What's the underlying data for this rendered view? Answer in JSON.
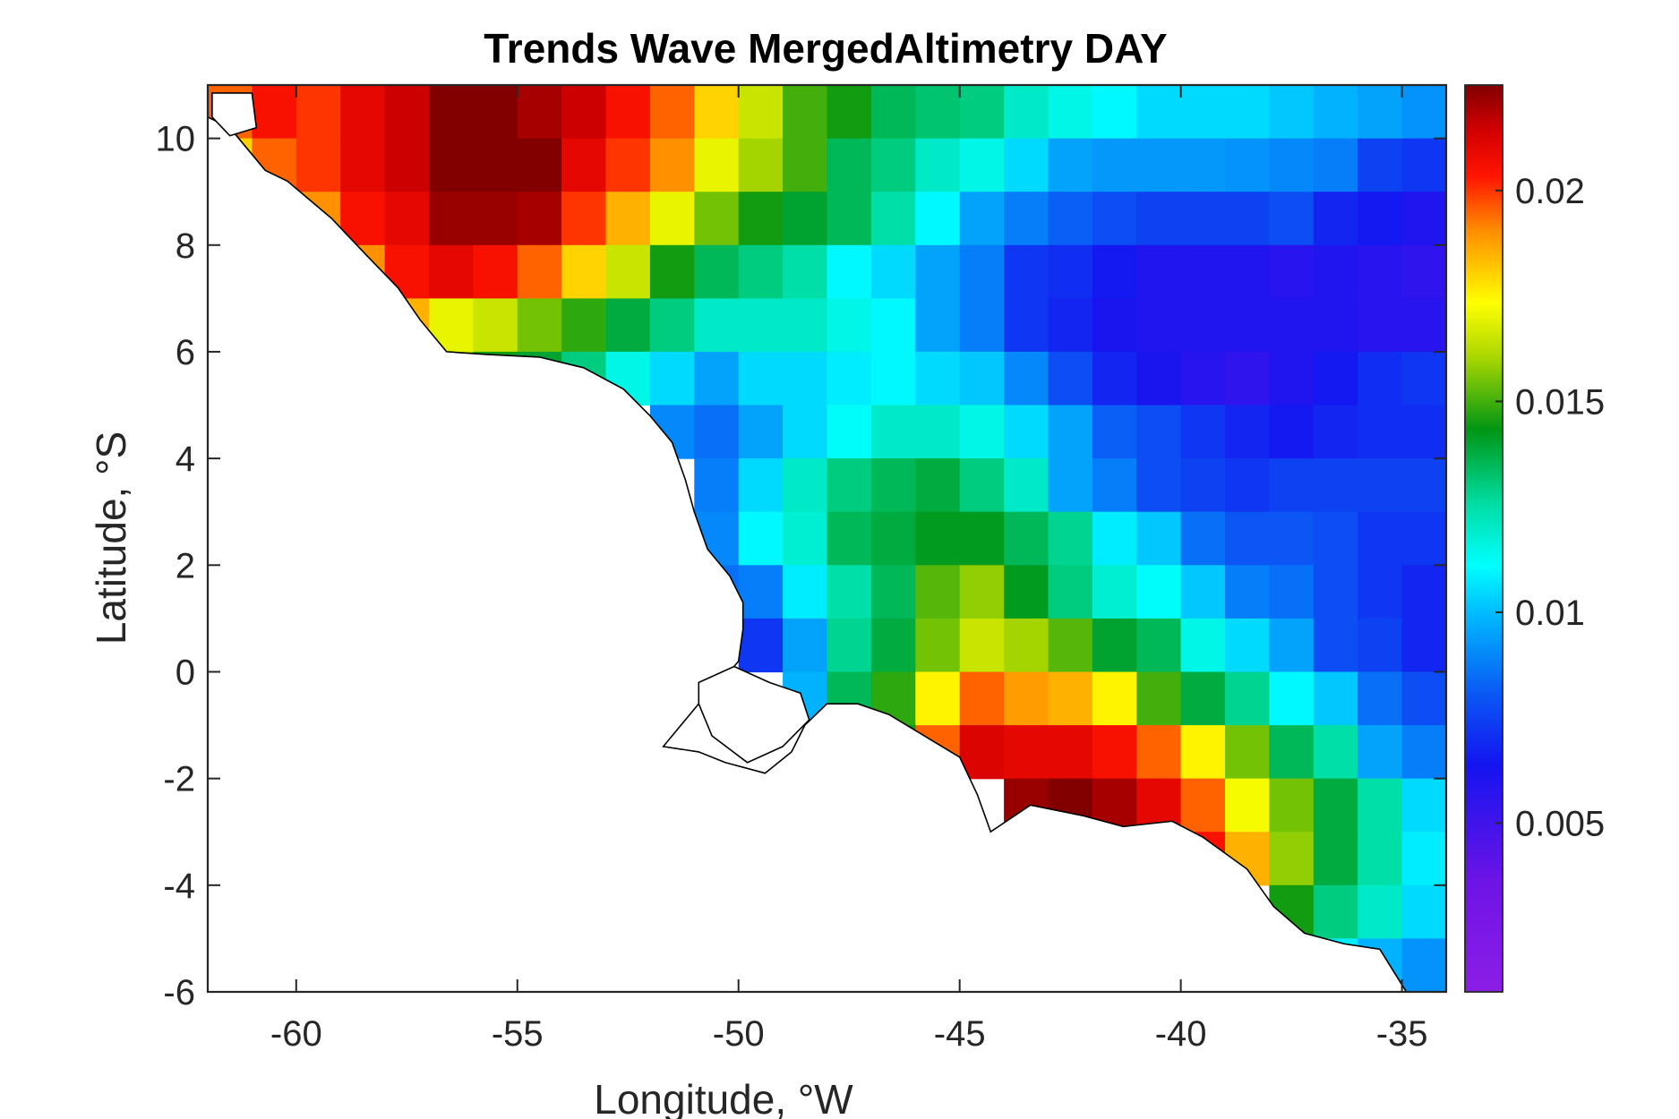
{
  "chart_data": {
    "type": "heatmap",
    "title": "Trends Wave MergedAltimetry DAY",
    "xlabel": "Longitude, °W",
    "ylabel": "Latitude, °S",
    "xlim": [
      -62,
      -34
    ],
    "ylim": [
      -6,
      11
    ],
    "xticks": [
      -60,
      -55,
      -50,
      -45,
      -40,
      -35
    ],
    "yticks": [
      -6,
      -4,
      -2,
      0,
      2,
      4,
      6,
      8,
      10
    ],
    "xtick_labels": [
      "-60",
      "-55",
      "-50",
      "-45",
      "-40",
      "-35"
    ],
    "ytick_labels": [
      "-6",
      "-4",
      "-2",
      "0",
      "2",
      "4",
      "6",
      "8",
      "10"
    ],
    "colorbar": {
      "range": [
        0.001,
        0.0225
      ],
      "ticks": [
        0.005,
        0.01,
        0.015,
        0.02
      ],
      "tick_labels": [
        "0.005",
        "0.01",
        "0.015",
        "0.02"
      ],
      "colormap": "jet-like (purple → blue → cyan → green → yellow → red → dark red)"
    },
    "grid": {
      "lon_start": -62,
      "lat_start": 11,
      "lon_step": 1,
      "lat_step": 1,
      "note_rows": "row 0 = 11→10 N, last row = -5→-6",
      "values": [
        [
          0.0195,
          0.0205,
          0.02,
          0.021,
          0.0215,
          0.0225,
          0.0225,
          0.022,
          0.0215,
          0.0205,
          0.0195,
          0.018,
          0.0165,
          0.015,
          0.0145,
          0.0135,
          0.0132,
          0.013,
          0.012,
          0.0115,
          0.011,
          0.0105,
          0.0105,
          0.0105,
          0.0102,
          0.0098,
          0.0095,
          0.0092
        ],
        [
          0.018,
          0.0195,
          0.02,
          0.021,
          0.0215,
          0.0225,
          0.0228,
          0.0225,
          0.021,
          0.02,
          0.019,
          0.017,
          0.016,
          0.015,
          0.0135,
          0.013,
          0.012,
          0.0115,
          0.0105,
          0.0095,
          0.0093,
          0.0093,
          0.0093,
          0.0092,
          0.009,
          0.0088,
          0.0075,
          0.0072
        ],
        [
          null,
          0.018,
          0.019,
          0.0205,
          0.021,
          0.0222,
          0.0222,
          0.022,
          0.02,
          0.0185,
          0.017,
          0.0155,
          0.0145,
          0.014,
          0.0135,
          0.0125,
          0.011,
          0.0095,
          0.0088,
          0.0082,
          0.0078,
          0.0075,
          0.0075,
          0.0075,
          0.0078,
          0.0068,
          0.0065,
          0.006
        ],
        [
          null,
          null,
          null,
          0.019,
          0.0205,
          0.021,
          0.0205,
          0.0195,
          0.018,
          0.0165,
          0.0145,
          0.0135,
          0.013,
          0.0125,
          0.011,
          0.0105,
          0.0095,
          0.0088,
          0.0072,
          0.007,
          0.0065,
          0.006,
          0.006,
          0.006,
          0.0058,
          0.006,
          0.0058,
          0.0055
        ],
        [
          null,
          null,
          null,
          null,
          0.0185,
          0.017,
          0.0165,
          0.0155,
          0.0148,
          0.0138,
          0.013,
          0.012,
          0.012,
          0.012,
          0.0115,
          0.011,
          0.0095,
          0.0088,
          0.0072,
          0.0068,
          0.0062,
          0.006,
          0.006,
          0.006,
          0.006,
          0.006,
          0.0058,
          0.0058
        ],
        [
          null,
          null,
          null,
          null,
          null,
          0.016,
          0.0145,
          0.014,
          0.013,
          0.0115,
          0.0105,
          0.0095,
          0.0105,
          0.0105,
          0.0108,
          0.011,
          0.0105,
          0.0102,
          0.009,
          0.0078,
          0.0068,
          0.0062,
          0.0058,
          0.0055,
          0.006,
          0.0065,
          0.007,
          0.0072
        ],
        [
          null,
          null,
          null,
          null,
          null,
          null,
          null,
          null,
          null,
          null,
          0.009,
          0.0085,
          0.0095,
          0.0105,
          0.0112,
          0.012,
          0.012,
          0.0115,
          0.0105,
          0.0095,
          0.0082,
          0.0078,
          0.0072,
          0.0068,
          0.0065,
          0.0068,
          0.007,
          0.007
        ],
        [
          null,
          null,
          null,
          null,
          null,
          null,
          null,
          null,
          null,
          null,
          null,
          0.0088,
          0.0105,
          0.012,
          0.013,
          0.0135,
          0.0138,
          0.013,
          0.012,
          0.0095,
          0.0088,
          0.0078,
          0.0075,
          0.0072,
          0.0075,
          0.0075,
          0.0075,
          0.0075
        ],
        [
          null,
          null,
          null,
          null,
          null,
          null,
          null,
          null,
          null,
          null,
          null,
          0.009,
          0.011,
          0.0118,
          0.0135,
          0.0138,
          0.0142,
          0.0142,
          0.0135,
          0.0128,
          0.0108,
          0.0102,
          0.0085,
          0.008,
          0.008,
          0.0078,
          0.0072,
          0.0072
        ],
        [
          null,
          null,
          null,
          null,
          null,
          null,
          null,
          null,
          null,
          null,
          null,
          0.0085,
          0.0088,
          0.0108,
          0.0125,
          0.0135,
          0.0152,
          0.0158,
          0.0142,
          0.013,
          0.0118,
          0.0112,
          0.0102,
          0.0088,
          0.0085,
          0.0078,
          0.0072,
          0.0068
        ],
        [
          null,
          null,
          null,
          null,
          null,
          null,
          null,
          null,
          null,
          null,
          null,
          null,
          0.0072,
          0.0095,
          0.0128,
          0.0138,
          0.0155,
          0.0165,
          0.016,
          0.0152,
          0.014,
          0.0135,
          0.0115,
          0.0105,
          0.0095,
          0.0078,
          0.0075,
          0.0068
        ],
        [
          null,
          null,
          null,
          null,
          null,
          null,
          null,
          null,
          null,
          null,
          null,
          null,
          null,
          0.0098,
          0.0135,
          0.0148,
          0.0175,
          0.0195,
          0.0188,
          0.0185,
          0.0175,
          0.015,
          0.0138,
          0.0128,
          0.011,
          0.0102,
          0.0085,
          0.0078
        ],
        [
          null,
          null,
          null,
          null,
          null,
          null,
          null,
          null,
          null,
          null,
          null,
          null,
          null,
          null,
          0.0138,
          0.0142,
          0.0195,
          0.0212,
          0.021,
          0.021,
          0.0205,
          0.0195,
          0.0175,
          0.0155,
          0.0135,
          0.0125,
          0.0095,
          0.0088
        ],
        [
          null,
          null,
          null,
          null,
          null,
          null,
          null,
          null,
          null,
          null,
          null,
          null,
          null,
          null,
          null,
          null,
          null,
          null,
          0.0222,
          0.0225,
          0.022,
          0.021,
          0.0195,
          0.0172,
          0.0155,
          0.0138,
          0.0125,
          0.0105
        ],
        [
          null,
          null,
          null,
          null,
          null,
          null,
          null,
          null,
          null,
          null,
          null,
          null,
          null,
          null,
          null,
          null,
          null,
          null,
          0.0215,
          0.022,
          0.0215,
          0.021,
          0.0205,
          0.0185,
          0.0158,
          0.0138,
          0.0125,
          0.0108
        ],
        [
          null,
          null,
          null,
          null,
          null,
          null,
          null,
          null,
          null,
          null,
          null,
          null,
          null,
          null,
          null,
          null,
          null,
          null,
          null,
          null,
          null,
          null,
          null,
          null,
          0.0145,
          0.013,
          0.012,
          0.0105
        ],
        [
          null,
          null,
          null,
          null,
          null,
          null,
          null,
          null,
          null,
          null,
          null,
          null,
          null,
          null,
          null,
          null,
          null,
          null,
          null,
          null,
          null,
          null,
          null,
          null,
          null,
          0.0108,
          0.0098,
          0.0092
        ]
      ]
    }
  }
}
